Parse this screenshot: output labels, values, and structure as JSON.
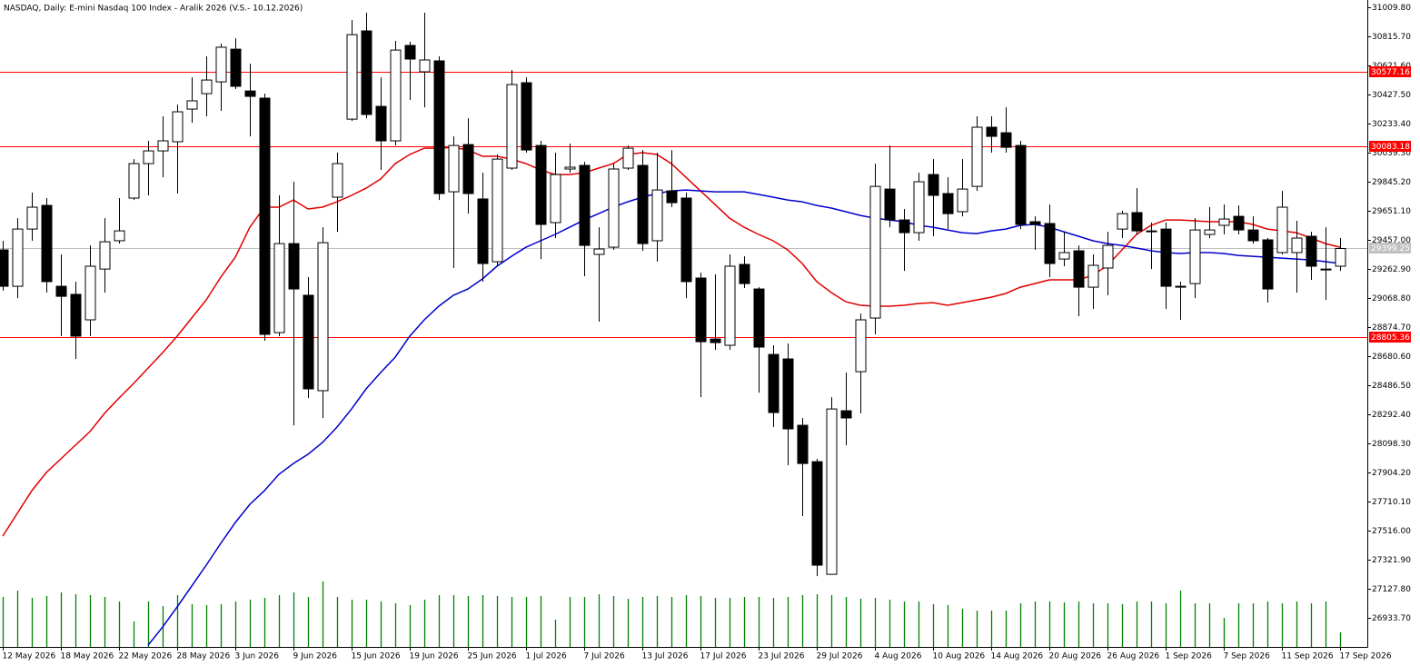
{
  "chart_data": {
    "type": "candlestick",
    "title": "NASDAQ, Daily:  E-mini Nasdaq 100 Index - Aralik 2026 (V.S.- 10.12.2026)",
    "categories": [
      "12 May 2026",
      null,
      null,
      null,
      "18 May 2026",
      null,
      null,
      null,
      "22 May 2026",
      null,
      null,
      null,
      "28 May 2026",
      null,
      null,
      null,
      "3 Jun 2026",
      null,
      null,
      null,
      "9 Jun 2026",
      null,
      null,
      null,
      "15 Jun 2026",
      null,
      null,
      null,
      "19 Jun 2026",
      null,
      null,
      null,
      "25 Jun 2026",
      null,
      null,
      null,
      "1 Jul 2026",
      null,
      null,
      null,
      "7 Jul 2026",
      null,
      null,
      null,
      "13 Jul 2026",
      null,
      null,
      null,
      "17 Jul 2026",
      null,
      null,
      null,
      "23 Jul 2026",
      null,
      null,
      null,
      "29 Jul 2026",
      null,
      null,
      null,
      "4 Aug 2026",
      null,
      null,
      null,
      "10 Aug 2026",
      null,
      null,
      null,
      "14 Aug 2026",
      null,
      null,
      null,
      "20 Aug 2026",
      null,
      null,
      null,
      "26 Aug 2026",
      null,
      null,
      null,
      "1 Sep 2026",
      null,
      null,
      null,
      "7 Sep 2026",
      null,
      null,
      null,
      "11 Sep 2026",
      null,
      null,
      null,
      "17 Sep 2026"
    ],
    "open": [
      29390,
      29147,
      29529,
      29687,
      29147,
      29093,
      28923,
      29262,
      29451,
      29736,
      29966,
      30051,
      30112,
      30330,
      30433,
      30512,
      30730,
      30451,
      30403,
      28838,
      29432,
      29087,
      28450,
      29742,
      30263,
      30852,
      30348,
      30118,
      30755,
      30579,
      30652,
      29778,
      30093,
      29730,
      29311,
      29936,
      30506,
      30087,
      29572,
      29930,
      29954,
      29360,
      29408,
      29936,
      29954,
      29451,
      29784,
      29736,
      29202,
      28795,
      28753,
      29293,
      29129,
      28692,
      28662,
      28219,
      27976,
      27224,
      28316,
      28577,
      28935,
      29796,
      29590,
      29505,
      29893,
      29766,
      29645,
      29814,
      30209,
      30172,
      30087,
      29578,
      29566,
      29329,
      29384,
      29141,
      29269,
      29529,
      29639,
      29517,
      29529,
      29147,
      29165,
      29493,
      29554,
      29614,
      29523,
      29457,
      29372,
      29372,
      29481,
      29262,
      29281
    ],
    "high": [
      29451,
      29602,
      29772,
      29736,
      29360,
      29178,
      29420,
      29602,
      29736,
      29996,
      30118,
      30282,
      30360,
      30542,
      30682,
      30767,
      30803,
      30633,
      30433,
      29754,
      29845,
      29208,
      29541,
      30039,
      30925,
      30973,
      30542,
      30785,
      30779,
      30973,
      30682,
      30148,
      30269,
      29905,
      30027,
      30591,
      30542,
      30118,
      30039,
      30100,
      29978,
      29541,
      29966,
      30087,
      30057,
      30039,
      30057,
      29772,
      29238,
      29226,
      29360,
      29347,
      29141,
      28753,
      28765,
      28268,
      27995,
      28407,
      28571,
      28965,
      29966,
      30087,
      29663,
      29905,
      29996,
      29875,
      29996,
      30282,
      30282,
      30342,
      30118,
      29614,
      29693,
      29511,
      29420,
      29360,
      29511,
      29651,
      29802,
      29572,
      29572,
      29178,
      29602,
      29675,
      29693,
      29687,
      29614,
      29469,
      29784,
      29584,
      29511,
      29541,
      29469
    ],
    "low": [
      29117,
      29068,
      29451,
      29105,
      28814,
      28662,
      28814,
      29105,
      29432,
      29723,
      29754,
      29875,
      29766,
      30239,
      30282,
      30318,
      30464,
      30148,
      28783,
      28814,
      28219,
      28401,
      28268,
      29511,
      30251,
      30269,
      29924,
      30087,
      30391,
      30342,
      29723,
      29269,
      29632,
      29178,
      29281,
      29924,
      30039,
      29329,
      29469,
      29905,
      29214,
      28911,
      29390,
      29924,
      29384,
      29311,
      29675,
      29068,
      28407,
      28723,
      28723,
      29135,
      28437,
      28207,
      27952,
      27613,
      27212,
      27224,
      28086,
      28298,
      28826,
      29541,
      29250,
      29451,
      29481,
      29529,
      29614,
      29784,
      30039,
      30039,
      29529,
      29390,
      29208,
      29281,
      28947,
      28996,
      29087,
      29469,
      29493,
      29262,
      28996,
      28923,
      29068,
      29469,
      29493,
      29493,
      29432,
      29038,
      29360,
      29105,
      29190,
      29056,
      29250
    ],
    "close": [
      29147,
      29529,
      29675,
      29178,
      29080,
      28814,
      29281,
      29444,
      29517,
      29966,
      30051,
      30118,
      30312,
      30385,
      30524,
      30743,
      30482,
      30415,
      28826,
      29432,
      29129,
      28462,
      29438,
      29966,
      30827,
      30294,
      30118,
      30724,
      30664,
      30658,
      29766,
      30087,
      29766,
      29299,
      29996,
      30494,
      30057,
      29560,
      29893,
      29942,
      29420,
      29396,
      29930,
      30069,
      29432,
      29790,
      29705,
      29178,
      28777,
      28771,
      29281,
      29165,
      28741,
      28304,
      28195,
      27964,
      27285,
      28328,
      28268,
      28923,
      29814,
      29590,
      29505,
      29845,
      29754,
      29632,
      29796,
      30209,
      30148,
      30075,
      29560,
      29560,
      29299,
      29372,
      29141,
      29287,
      29420,
      29632,
      29517,
      29511,
      29147,
      29141,
      29523,
      29523,
      29596,
      29523,
      29451,
      29129,
      29675,
      29469,
      29281,
      29256,
      29399.25
    ],
    "bull_color": "#ffffff",
    "bear_color": "#000000",
    "lines": [
      {
        "color": "#e00000",
        "values": [
          27479,
          27631,
          27782,
          27904,
          27995,
          28086,
          28177,
          28298,
          28401,
          28498,
          28601,
          28704,
          28814,
          28935,
          29056,
          29208,
          29341,
          29541,
          29675,
          29675,
          29723,
          29663,
          29675,
          29711,
          29754,
          29802,
          29863,
          29966,
          30027,
          30069,
          30069,
          30075,
          30057,
          30015,
          30015,
          29996,
          29966,
          29924,
          29893,
          29893,
          29905,
          29936,
          29966,
          30027,
          30039,
          30027,
          29966,
          29875,
          29784,
          29693,
          29602,
          29541,
          29493,
          29451,
          29390,
          29299,
          29178,
          29105,
          29044,
          29020,
          29014,
          29014,
          29020,
          29032,
          29038,
          29020,
          29038,
          29056,
          29074,
          29099,
          29141,
          29165,
          29190,
          29190,
          29190,
          29220,
          29287,
          29390,
          29493,
          29554,
          29590,
          29590,
          29584,
          29578,
          29578,
          29578,
          29560,
          29529,
          29517,
          29505,
          29469,
          29432,
          29408
        ]
      },
      {
        "color": "#0000cc",
        "values": [
          null,
          null,
          null,
          null,
          null,
          null,
          null,
          null,
          null,
          null,
          26751,
          26872,
          27006,
          27145,
          27285,
          27431,
          27570,
          27691,
          27782,
          27892,
          27964,
          28025,
          28104,
          28207,
          28328,
          28462,
          28571,
          28674,
          28814,
          28923,
          29014,
          29087,
          29129,
          29196,
          29281,
          29347,
          29408,
          29451,
          29493,
          29541,
          29590,
          29632,
          29675,
          29711,
          29742,
          29766,
          29784,
          29790,
          29784,
          29778,
          29778,
          29778,
          29760,
          29742,
          29723,
          29711,
          29687,
          29669,
          29645,
          29620,
          29602,
          29590,
          29578,
          29554,
          29541,
          29523,
          29505,
          29499,
          29517,
          29529,
          29554,
          29560,
          29541,
          29511,
          29481,
          29451,
          29432,
          29420,
          29402,
          29384,
          29372,
          29366,
          29372,
          29372,
          29366,
          29353,
          29347,
          29341,
          29335,
          29329,
          29323,
          29311,
          29299
        ]
      }
    ],
    "volumes": [
      55,
      62,
      54,
      56,
      60,
      58,
      57,
      55,
      50,
      28,
      50,
      45,
      57,
      47,
      46,
      47,
      50,
      52,
      54,
      57,
      60,
      55,
      72,
      55,
      52,
      52,
      50,
      48,
      46,
      52,
      57,
      57,
      56,
      57,
      56,
      55,
      55,
      56,
      30,
      55,
      55,
      58,
      56,
      53,
      55,
      56,
      55,
      57,
      56,
      54,
      54,
      55,
      55,
      54,
      55,
      57,
      58,
      57,
      55,
      53,
      54,
      52,
      50,
      50,
      47,
      46,
      42,
      40,
      40,
      40,
      48,
      50,
      50,
      49,
      50,
      48,
      48,
      47,
      50,
      50,
      48,
      62,
      48,
      48,
      32,
      48,
      48,
      50,
      48,
      50,
      48,
      50,
      16
    ],
    "volume_color": "#008000",
    "levels": [
      {
        "value": 30577.16
      },
      {
        "value": 30083.18
      },
      {
        "value": 28805.36
      }
    ],
    "level_color": "#ff0000",
    "current_price": 29399.25,
    "current_price_color": "#c0c0c0",
    "ylim": [
      26739.3,
      31058.3
    ],
    "yticks": [
      {
        "value": 31009.8,
        "label": "31009.80"
      },
      {
        "value": 30815.7,
        "label": "30815.70"
      },
      {
        "value": 30621.6,
        "label": "30621.60"
      },
      {
        "value": 30427.5,
        "label": "30427.50"
      },
      {
        "value": 30233.4,
        "label": "30233.40"
      },
      {
        "value": 30039.3,
        "label": "30039.30"
      },
      {
        "value": 29845.2,
        "label": "29845.20"
      },
      {
        "value": 29651.1,
        "label": "29651.10"
      },
      {
        "value": 29457.0,
        "label": "29457.00"
      },
      {
        "value": 29262.9,
        "label": "29262.90"
      },
      {
        "value": 29068.8,
        "label": "29068.80"
      },
      {
        "value": 28874.7,
        "label": "28874.70"
      },
      {
        "value": 28680.6,
        "label": "28680.60"
      },
      {
        "value": 28486.5,
        "label": "28486.50"
      },
      {
        "value": 28292.4,
        "label": "28292.40"
      },
      {
        "value": 28098.3,
        "label": "28098.30"
      },
      {
        "value": 27904.2,
        "label": "27904.20"
      },
      {
        "value": 27710.1,
        "label": "27710.10"
      },
      {
        "value": 27516.0,
        "label": "27516.00"
      },
      {
        "value": 27321.9,
        "label": "27321.90"
      },
      {
        "value": 27127.8,
        "label": "27127.80"
      },
      {
        "value": 26933.7,
        "label": "26933.70"
      }
    ]
  }
}
